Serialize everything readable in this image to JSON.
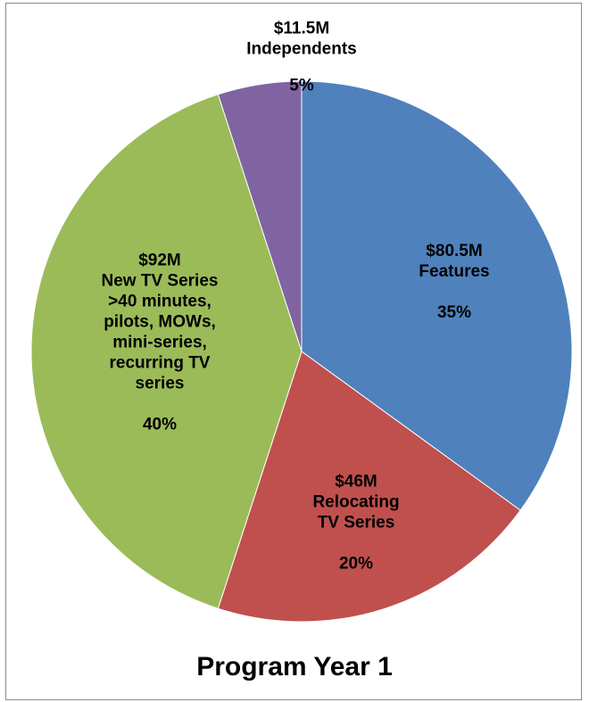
{
  "chart_data": {
    "type": "pie",
    "title": "Program Year 1",
    "slices": [
      {
        "name": "Features",
        "amount_label": "$80.5M",
        "lines": [
          "Features"
        ],
        "value": 35,
        "pct_label": "35%",
        "color": "#4f81bd"
      },
      {
        "name": "Relocating TV Series",
        "amount_label": "$46M",
        "lines": [
          "Relocating",
          "TV Series"
        ],
        "value": 20,
        "pct_label": "20%",
        "color": "#c0504d"
      },
      {
        "name": "New TV Series >40 minutes, pilots, MOWs, mini-series, recurring TV series",
        "amount_label": "$92M",
        "lines": [
          "New TV Series",
          ">40 minutes,",
          "pilots, MOWs,",
          "mini-series,",
          "recurring TV",
          "series"
        ],
        "value": 40,
        "pct_label": "40%",
        "color": "#9bbb59"
      },
      {
        "name": "Independents",
        "amount_label": "$11.5M",
        "lines": [
          "Independents"
        ],
        "value": 5,
        "pct_label": "5%",
        "color": "#8064a2"
      }
    ],
    "legend": "none"
  }
}
